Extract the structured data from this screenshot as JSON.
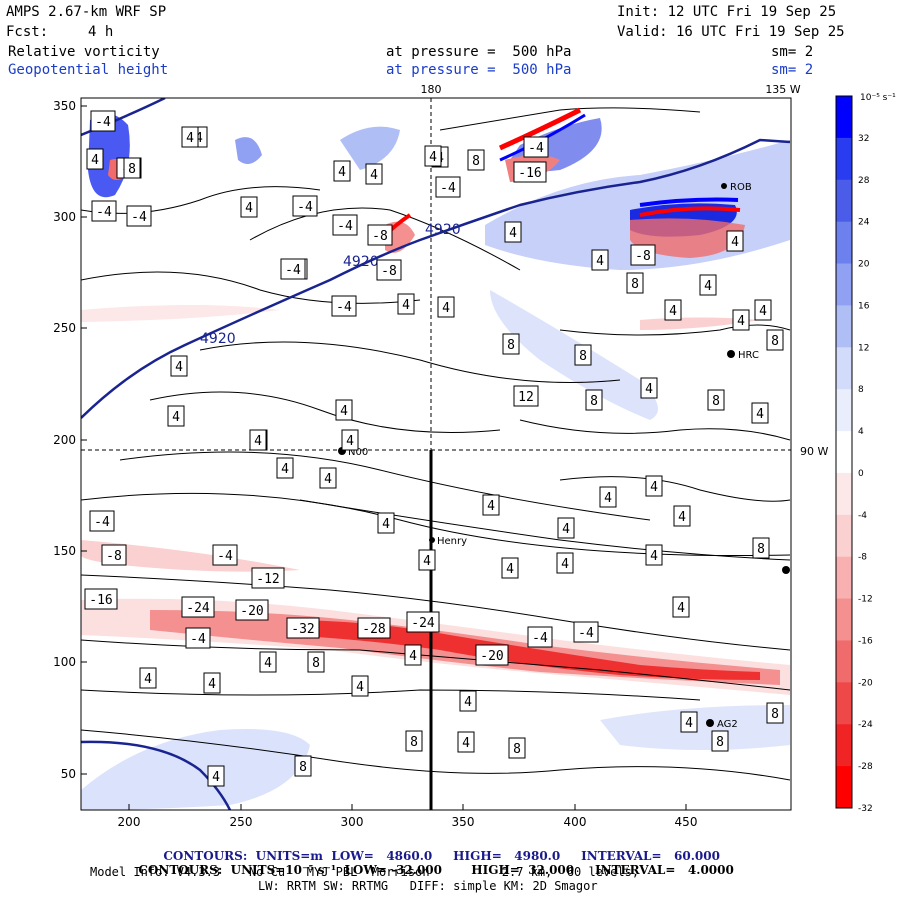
{
  "header": {
    "model_title": "AMPS 2.67-km WRF SP",
    "init_text": "Init: 12 UTC Fri 19 Sep 25",
    "fcst_label": "Fcst:",
    "fcst_value": "4 h",
    "valid_text": "Valid: 16 UTC Fri 19 Sep 25"
  },
  "fields": [
    {
      "name": "Relative vorticity",
      "level": "at pressure =  500 hPa",
      "sm": "sm= 2"
    },
    {
      "name": "Geopotential height",
      "level": "at pressure =  500 hPa",
      "sm": "sm= 2"
    }
  ],
  "map": {
    "meridian_180": "180",
    "meridian_135w": "135 W",
    "meridian_90w": "90 W",
    "x_ticks": [
      "200",
      "250",
      "300",
      "350",
      "400",
      "450"
    ],
    "y_ticks": [
      "350",
      "300",
      "250",
      "200",
      "150",
      "100",
      "50"
    ],
    "stations": [
      "ROB",
      "HRC",
      "N00",
      "Henry",
      "AG2"
    ],
    "height_contours": [
      "4920",
      "4920",
      "4920"
    ],
    "vorticity_labels": {
      "negative": [
        "-4",
        "-4",
        "-4",
        "-4",
        "-8",
        "-4",
        "-4",
        "-4",
        "-4",
        "-4",
        "-4",
        "-8",
        "-4",
        "-4",
        "-8",
        "-4",
        "-12",
        "-16",
        "-24",
        "-20",
        "-32",
        "-28",
        "-24",
        "-20",
        "-4",
        "-4",
        "-8",
        "-4",
        "-16",
        "-4",
        "-8"
      ],
      "positive": [
        "4",
        "8",
        "4",
        "4",
        "4",
        "4",
        "8",
        "4",
        "4",
        "4",
        "4",
        "4",
        "4",
        "4",
        "8",
        "4",
        "4",
        "4",
        "4",
        "8",
        "8",
        "8",
        "4",
        "8",
        "12",
        "8",
        "4",
        "4",
        "4",
        "8",
        "4",
        "4",
        "4",
        "4",
        "4",
        "4",
        "4",
        "4",
        "4",
        "8",
        "4",
        "4",
        "4",
        "4",
        "4",
        "4",
        "8",
        "4",
        "4",
        "4",
        "4",
        "4",
        "4",
        "8",
        "8",
        "8",
        "4",
        "8",
        "8",
        "4",
        "4",
        "4"
      ]
    }
  },
  "colorbar": {
    "unit_label": "10⁻⁵ s⁻¹",
    "ticks": [
      "32",
      "28",
      "24",
      "20",
      "16",
      "12",
      "8",
      "4",
      "0",
      "-4",
      "-8",
      "-12",
      "-16",
      "-20",
      "-24",
      "-28",
      "-32"
    ],
    "colors": [
      "#0000ff",
      "#2a3cf0",
      "#4a5ce8",
      "#6c80ee",
      "#90a0f2",
      "#b0bef6",
      "#d2dbfa",
      "#eaeefc",
      "#ffffff",
      "#fce8e8",
      "#fad0d0",
      "#f8b0b0",
      "#f49090",
      "#f06c6c",
      "#ee4848",
      "#f02424",
      "#ff0000"
    ]
  },
  "footer": {
    "contours_height": {
      "label": "CONTOURS:",
      "units": "UNITS=m",
      "low": "LOW=   4860.0",
      "high": "HIGH=   4980.0",
      "interval": "INTERVAL=   60.000"
    },
    "contours_vorticity": {
      "label": "CONTOURS:",
      "units": "UNITS=10⁻⁵ s⁻¹",
      "low": "LOW= -32.000",
      "high": "HIGH=  32.000",
      "interval": "INTERVAL=   4.0000"
    },
    "model_info_1": "Model Info: V4.3.3    No Cu   MYJ PBL  Morrison          2.7 km,  60 levels,",
    "model_info_2": "LW: RRTM SW: RRTMG   DIFF: simple KM: 2D Smagor"
  }
}
